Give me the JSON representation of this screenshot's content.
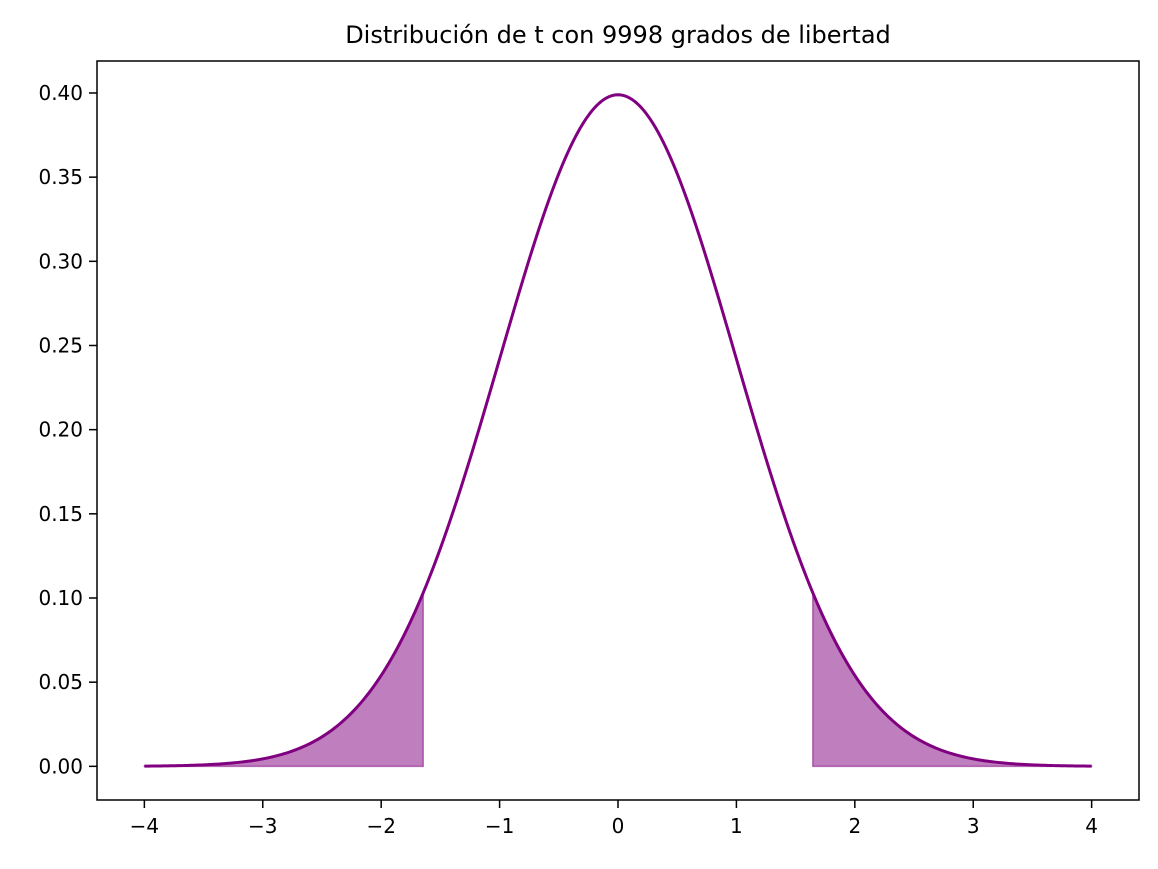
{
  "chart_data": {
    "type": "line",
    "title": "Distribución de t con 9998 grados de libertad",
    "xlabel": "",
    "ylabel": "",
    "xlim": [
      -4.4,
      4.4
    ],
    "ylim": [
      -0.02,
      0.419
    ],
    "x_ticks": [
      -4,
      -3,
      -2,
      -1,
      0,
      1,
      2,
      3,
      4
    ],
    "x_tick_labels": [
      "−4",
      "−3",
      "−2",
      "−1",
      "0",
      "1",
      "2",
      "3",
      "4"
    ],
    "y_ticks": [
      0.0,
      0.05,
      0.1,
      0.15,
      0.2,
      0.25,
      0.3,
      0.35,
      0.4
    ],
    "y_tick_labels": [
      "0.00",
      "0.05",
      "0.10",
      "0.15",
      "0.20",
      "0.25",
      "0.30",
      "0.35",
      "0.40"
    ],
    "grid": false,
    "series": [
      {
        "color": "#800080",
        "degrees_of_freedom": 9998,
        "x_range": [
          -4,
          4
        ],
        "peak": {
          "x": 0,
          "y": 0.3989
        }
      }
    ],
    "shaded_regions": [
      {
        "x_range": [
          -4,
          -1.645
        ],
        "color": "#800080",
        "opacity": 0.5
      },
      {
        "x_range": [
          1.645,
          4
        ],
        "color": "#800080",
        "opacity": 0.5
      }
    ]
  }
}
